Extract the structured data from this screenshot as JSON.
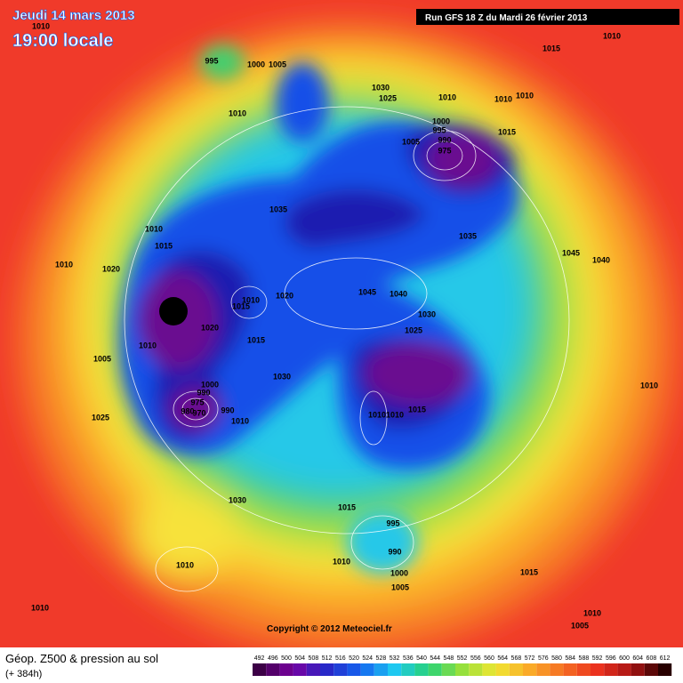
{
  "header": {
    "date": "Jeudi 14 mars 2013",
    "time": "19:00 locale",
    "run": "Run GFS 18 Z du Mardi 26 février 2013"
  },
  "map": {
    "isobar_labels": [
      "1010",
      "995",
      "1000",
      "1005",
      "1010",
      "1030",
      "1025",
      "1010",
      "1010",
      "1010",
      "1015",
      "1000",
      "995",
      "990",
      "975",
      "1005",
      "1035",
      "1035",
      "1045",
      "1040",
      "1010",
      "1015",
      "1010",
      "1020",
      "1010",
      "1015",
      "1020",
      "1020",
      "1045",
      "1040",
      "1030",
      "1025",
      "1010",
      "1005",
      "1015",
      "1030",
      "1000",
      "990",
      "975",
      "980",
      "970",
      "990",
      "1010",
      "1010",
      "1025",
      "1015",
      "1010",
      "1010",
      "1030",
      "1015",
      "995",
      "990",
      "1010",
      "1000",
      "1005",
      "1010",
      "1015",
      "1010",
      "1010",
      "1005",
      "1010",
      "1015"
    ]
  },
  "footer": {
    "copyright": "Copyright © 2012 Meteociel.fr"
  },
  "legend": {
    "title": "Géop. Z500 & pression au sol",
    "subtitle": "(+ 384h)",
    "ticks": [
      "492",
      "496",
      "500",
      "504",
      "508",
      "512",
      "516",
      "520",
      "524",
      "528",
      "532",
      "536",
      "540",
      "544",
      "548",
      "552",
      "556",
      "560",
      "564",
      "568",
      "572",
      "576",
      "580",
      "584",
      "588",
      "592",
      "596",
      "600",
      "604",
      "608",
      "612"
    ]
  }
}
